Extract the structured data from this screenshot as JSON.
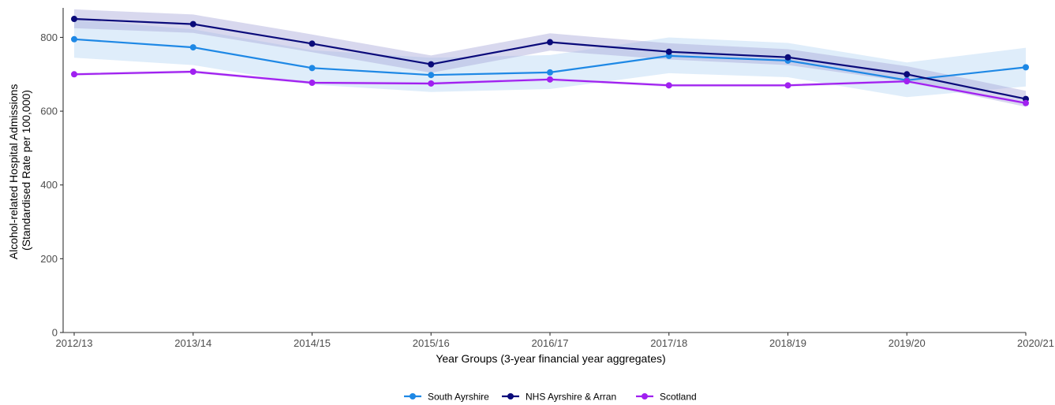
{
  "chart_data": {
    "type": "line",
    "title": "",
    "xlabel": "Year Groups (3-year financial year aggregates)",
    "ylabel_line1": "Alcohol-related Hospital Admissions",
    "ylabel_line2": "(Standardised Rate per 100,000)",
    "categories": [
      "2012/13",
      "2013/14",
      "2014/15",
      "2015/16",
      "2016/17",
      "2017/18",
      "2018/19",
      "2019/20",
      "2020/21"
    ],
    "ylim": [
      0,
      880
    ],
    "yticks": [
      0,
      200,
      400,
      600,
      800
    ],
    "grid": false,
    "legend_position": "bottom",
    "series": [
      {
        "name": "South Ayrshire",
        "color": "#1e88e5",
        "band_color": "#b9d7f5",
        "values": [
          795,
          773,
          717,
          698,
          705,
          750,
          737,
          684,
          719
        ],
        "lower": [
          745,
          725,
          672,
          652,
          660,
          703,
          692,
          638,
          667
        ],
        "upper": [
          848,
          822,
          765,
          745,
          752,
          800,
          785,
          732,
          772
        ]
      },
      {
        "name": "NHS Ayrshire & Arran",
        "color": "#0a0a7a",
        "band_color": "#a9a9da",
        "values": [
          850,
          836,
          783,
          727,
          787,
          761,
          746,
          700,
          633
        ],
        "lower": [
          825,
          812,
          760,
          704,
          764,
          740,
          725,
          680,
          612
        ],
        "upper": [
          876,
          862,
          808,
          751,
          811,
          784,
          768,
          722,
          655
        ]
      },
      {
        "name": "Scotland",
        "color": "#a020f0",
        "band_color": "#d7b3f5",
        "values": [
          700,
          707,
          677,
          675,
          686,
          670,
          670,
          681,
          622
        ],
        "lower": [
          696,
          703,
          673,
          671,
          682,
          666,
          666,
          677,
          618
        ],
        "upper": [
          704,
          711,
          681,
          679,
          690,
          674,
          674,
          685,
          626
        ]
      }
    ]
  }
}
